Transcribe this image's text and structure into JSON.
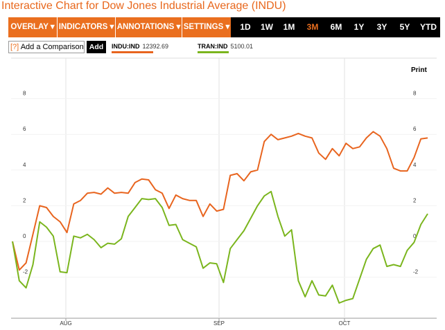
{
  "page": {
    "title": "Interactive Chart for Dow Jones Industrial Average (INDU)"
  },
  "toolbar": {
    "menus": [
      {
        "label": "OVERLAY ▾"
      },
      {
        "label": "INDICATORS ▾"
      },
      {
        "label": "ANNOTATIONS ▾"
      },
      {
        "label": "SETTINGS ▾"
      }
    ],
    "ranges": [
      {
        "label": "1D"
      },
      {
        "label": "1W"
      },
      {
        "label": "1M"
      },
      {
        "label": "3M"
      },
      {
        "label": "6M"
      },
      {
        "label": "1Y"
      },
      {
        "label": "3Y"
      },
      {
        "label": "5Y"
      },
      {
        "label": "YTD"
      }
    ],
    "active_range": "3M",
    "accent": "#ea6f1f"
  },
  "comparison": {
    "help": "[?]",
    "label": "Add a Comparison",
    "add_button": "Add"
  },
  "legend": [
    {
      "symbol": "INDU:IND",
      "value": "12392.69",
      "color": "#e8641e"
    },
    {
      "symbol": "TRAN:IND",
      "value": "5100.01",
      "color": "#7ab51d"
    }
  ],
  "print_label": "Print",
  "chart_data": {
    "type": "line",
    "x_tick_labels": [
      "AUG",
      "SEP",
      "OCT"
    ],
    "y_tick_labels": [
      "8",
      "6",
      "4",
      "2",
      "0",
      "-2"
    ],
    "ylim": [
      -3.5,
      9.5
    ],
    "grid": true,
    "series": [
      {
        "name": "INDU:IND",
        "color": "#e8641e",
        "values": [
          0,
          -1.6,
          -1.2,
          0.4,
          2.0,
          1.9,
          1.4,
          1.1,
          0.5,
          2.1,
          2.3,
          2.7,
          2.75,
          2.65,
          3.0,
          2.7,
          2.75,
          2.7,
          3.3,
          3.5,
          3.45,
          2.9,
          2.7,
          1.85,
          2.6,
          2.4,
          2.3,
          2.3,
          1.4,
          2.1,
          1.7,
          1.8,
          3.7,
          3.8,
          3.4,
          3.9,
          4.0,
          5.6,
          6.0,
          5.7,
          5.8,
          5.9,
          6.05,
          5.9,
          5.8,
          4.95,
          4.6,
          5.2,
          4.8,
          5.5,
          5.2,
          5.3,
          5.8,
          6.15,
          5.9,
          5.2,
          4.1,
          3.95,
          3.95,
          4.7,
          5.75,
          5.8
        ]
      },
      {
        "name": "TRAN:IND",
        "color": "#7ab51d",
        "values": [
          0,
          -2.2,
          -2.6,
          -1.3,
          1.1,
          0.8,
          0.3,
          -1.7,
          -1.75,
          0.3,
          0.2,
          0.4,
          0.1,
          -0.35,
          -0.1,
          -0.15,
          0.15,
          1.4,
          1.9,
          2.4,
          2.35,
          2.4,
          1.9,
          0.9,
          0.95,
          0.1,
          -0.1,
          -0.3,
          -1.5,
          -1.2,
          -1.25,
          -2.3,
          -0.4,
          0.1,
          0.6,
          1.3,
          2.0,
          2.55,
          2.8,
          1.4,
          0.3,
          0.65,
          -2.2,
          -3.1,
          -2.2,
          -3.0,
          -3.05,
          -2.45,
          -3.45,
          -3.3,
          -3.2,
          -2.1,
          -1.0,
          -0.4,
          -0.2,
          -1.4,
          -1.3,
          -1.4,
          -0.5,
          -0.05,
          0.95,
          1.55
        ]
      }
    ]
  }
}
